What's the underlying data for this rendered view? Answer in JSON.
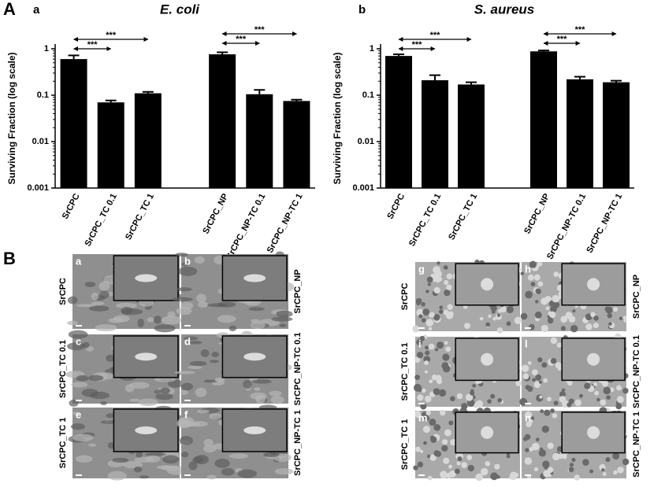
{
  "figure": {
    "panel_a": "A",
    "panel_b": "B"
  },
  "chart_data": [
    {
      "type": "bar",
      "panel": "a",
      "title": "E. coli",
      "y_label": "Surviving Fraction (log scale)",
      "categories": [
        "SrCPC",
        "SrCPC_TC 0.1",
        "SrCPC_TC 1",
        "SrCPC_NP",
        "SrCPC_NP-TC 0.1",
        "SrCPC_NP-TC 1"
      ],
      "values": [
        0.6,
        0.07,
        0.11,
        0.76,
        0.105,
        0.075
      ],
      "errors": [
        0.12,
        0.007,
        0.008,
        0.08,
        0.025,
        0.005
      ],
      "color": "#000000",
      "log_scale": true,
      "ylim": [
        0.001,
        1
      ],
      "yticks": [
        0.001,
        0.01,
        0.1,
        1
      ],
      "comparisons": [
        {
          "between": [
            0,
            1
          ],
          "label": "***"
        },
        {
          "between": [
            0,
            2
          ],
          "label": "***"
        },
        {
          "between": [
            3,
            4
          ],
          "label": "***"
        },
        {
          "between": [
            3,
            5
          ],
          "label": "***"
        }
      ]
    },
    {
      "type": "bar",
      "panel": "b",
      "title": "S. aureus",
      "y_label": "Surviving Fraction (log scale)",
      "categories": [
        "SrCPC",
        "SrCPC_TC 0.1",
        "SrCPC_TC 1",
        "SrCPC_NP",
        "SrCPC_NP-TC 0.1",
        "SrCPC_NP-TC 1"
      ],
      "values": [
        0.7,
        0.21,
        0.17,
        0.88,
        0.22,
        0.19
      ],
      "errors": [
        0.06,
        0.06,
        0.02,
        0.04,
        0.03,
        0.015
      ],
      "color": "#000000",
      "log_scale": true,
      "ylim": [
        0.001,
        1
      ],
      "yticks": [
        0.001,
        0.01,
        0.1,
        1
      ],
      "comparisons": [
        {
          "between": [
            0,
            1
          ],
          "label": "***"
        },
        {
          "between": [
            0,
            2
          ],
          "label": "***"
        },
        {
          "between": [
            3,
            4
          ],
          "label": "***"
        },
        {
          "between": [
            3,
            5
          ],
          "label": "***"
        }
      ]
    }
  ],
  "sem_blocks": [
    {
      "left_labels": [
        "SrCPC",
        "SrCPC_TC 0.1",
        "SrCPC_TC 1"
      ],
      "right_labels": [
        "SrCPC_NP",
        "SrCPC_NP-TC 0.1",
        "SrCPC_NP-TC 1"
      ],
      "letters": [
        [
          "a",
          "b"
        ],
        [
          "c",
          "d"
        ],
        [
          "e",
          "f"
        ]
      ]
    },
    {
      "left_labels": [
        "SrCPC",
        "SrCPC_TC 0.1",
        "SrCPC_TC 1"
      ],
      "right_labels": [
        "SrCPC_NP",
        "SrCPC_NP-TC 0.1",
        "SrCPC_NP-TC 1"
      ],
      "letters": [
        [
          "g",
          "h"
        ],
        [
          "i",
          "l"
        ],
        [
          "m",
          "n"
        ]
      ]
    }
  ]
}
